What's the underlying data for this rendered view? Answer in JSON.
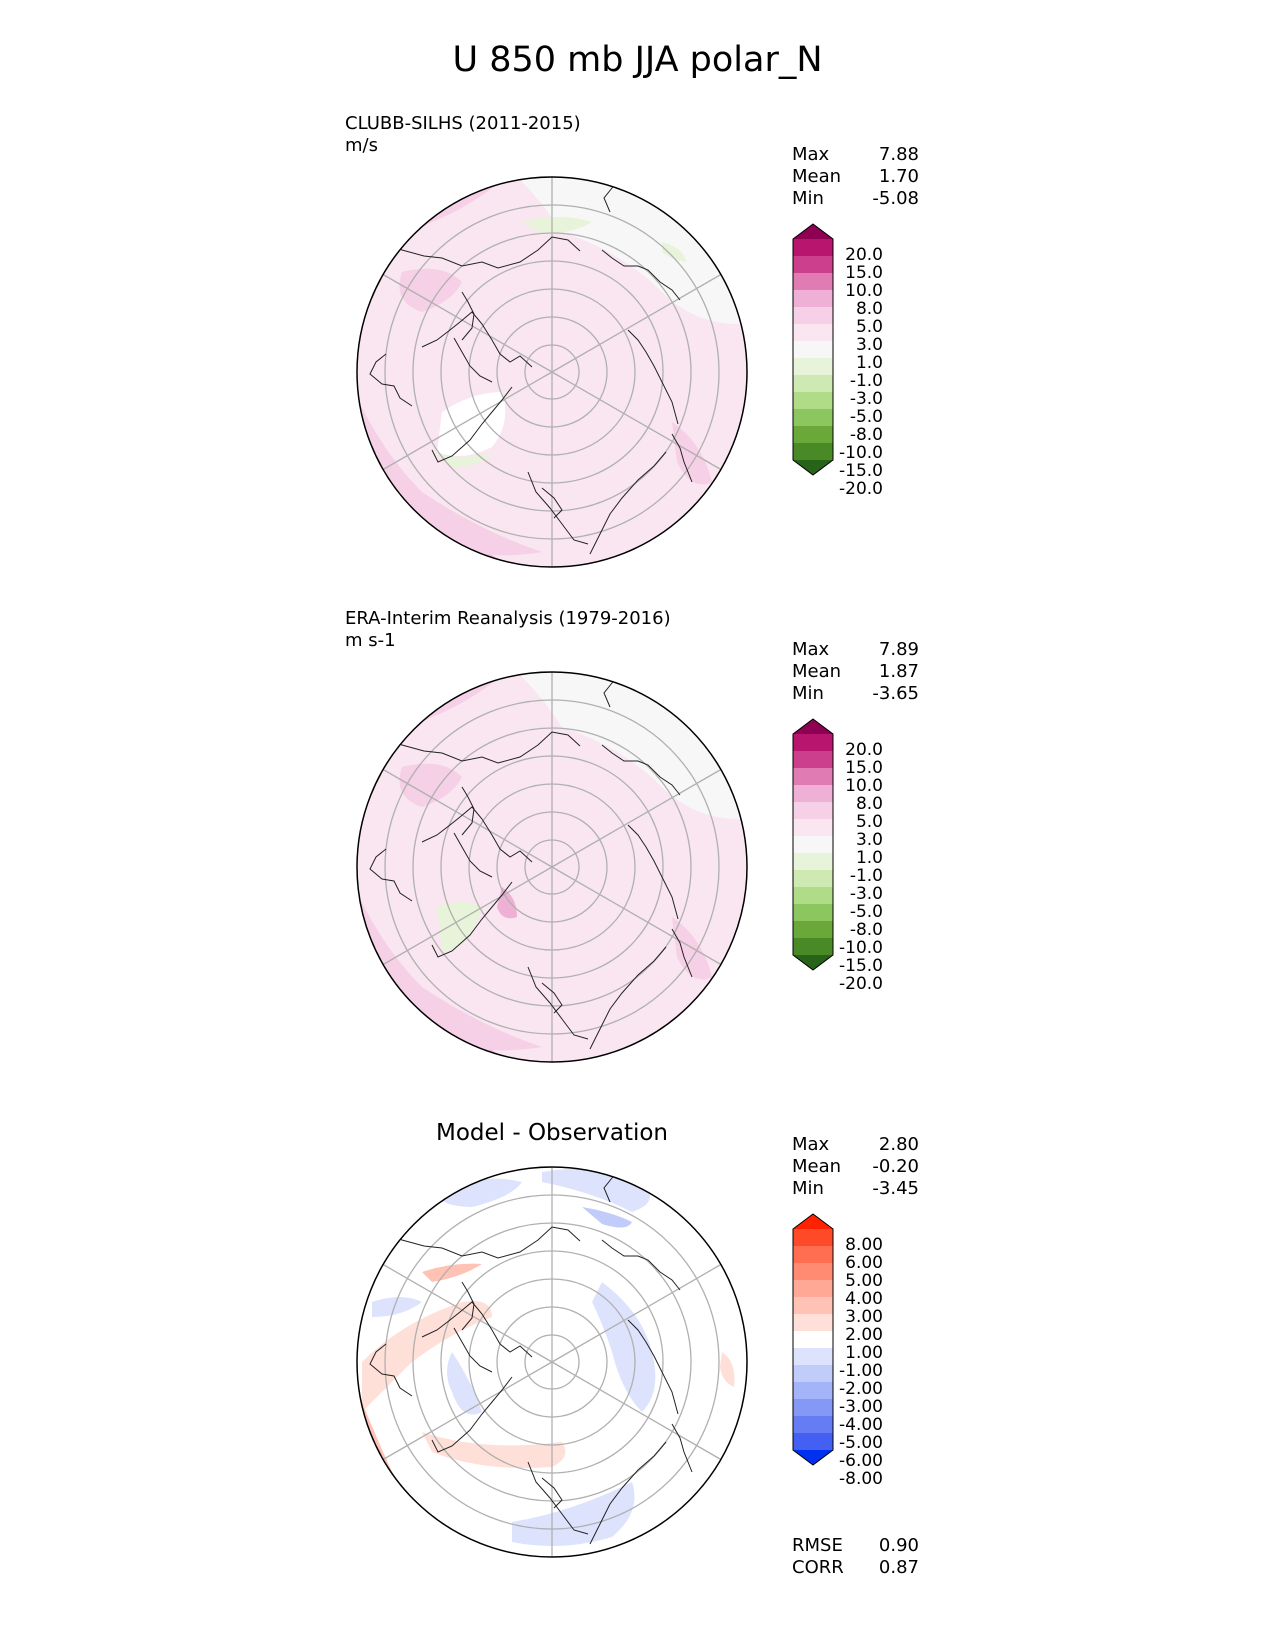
{
  "title": "U 850 mb JJA polar_N",
  "panels": [
    {
      "label": "CLUBB-SILHS (2011-2015)",
      "units": "m/s",
      "stats": [
        {
          "name": "Max",
          "value": "7.88"
        },
        {
          "name": "Mean",
          "value": "1.70"
        },
        {
          "name": "Min",
          "value": "-5.08"
        }
      ],
      "colorbar": {
        "ticks": [
          "20.0",
          "15.0",
          "10.0",
          "8.0",
          "5.0",
          "3.0",
          "1.0",
          "-1.0",
          "-3.0",
          "-5.0",
          "-8.0",
          "-10.0",
          "-15.0",
          "-20.0"
        ],
        "colors": [
          "#8e0152",
          "#b8166e",
          "#cc3f8c",
          "#e07cb3",
          "#eeb0d5",
          "#f5d0e6",
          "#f9e6f0",
          "#f7f7f7",
          "#e8f4da",
          "#cfe9b2",
          "#b0dc88",
          "#8cc65e",
          "#6aa83a",
          "#4a8a26",
          "#276419"
        ]
      }
    },
    {
      "label": "ERA-Interim Reanalysis (1979-2016)",
      "units": "m s-1",
      "stats": [
        {
          "name": "Max",
          "value": "7.89"
        },
        {
          "name": "Mean",
          "value": "1.87"
        },
        {
          "name": "Min",
          "value": "-3.65"
        }
      ],
      "colorbar": {
        "ticks": [
          "20.0",
          "15.0",
          "10.0",
          "8.0",
          "5.0",
          "3.0",
          "1.0",
          "-1.0",
          "-3.0",
          "-5.0",
          "-8.0",
          "-10.0",
          "-15.0",
          "-20.0"
        ],
        "colors": [
          "#8e0152",
          "#b8166e",
          "#cc3f8c",
          "#e07cb3",
          "#eeb0d5",
          "#f5d0e6",
          "#f9e6f0",
          "#f7f7f7",
          "#e8f4da",
          "#cfe9b2",
          "#b0dc88",
          "#8cc65e",
          "#6aa83a",
          "#4a8a26",
          "#276419"
        ]
      }
    },
    {
      "title": "Model - Observation",
      "stats": [
        {
          "name": "Max",
          "value": "2.80"
        },
        {
          "name": "Mean",
          "value": "-0.20"
        },
        {
          "name": "Min",
          "value": "-3.45"
        }
      ],
      "colorbar": {
        "ticks": [
          "8.00",
          "6.00",
          "5.00",
          "4.00",
          "3.00",
          "2.00",
          "1.00",
          "-1.00",
          "-2.00",
          "-3.00",
          "-4.00",
          "-5.00",
          "-6.00",
          "-8.00"
        ],
        "colors": [
          "#ff2200",
          "#ff4a2a",
          "#ff6e50",
          "#ff8c72",
          "#ffa895",
          "#ffc2b4",
          "#ffe0d8",
          "#ffffff",
          "#dde3fc",
          "#c2ccfa",
          "#a4b4f8",
          "#8598f6",
          "#667cf4",
          "#4460f2",
          "#0030f0"
        ]
      },
      "metrics": [
        {
          "name": "RMSE",
          "value": "0.90"
        },
        {
          "name": "CORR",
          "value": "0.87"
        }
      ]
    }
  ]
}
